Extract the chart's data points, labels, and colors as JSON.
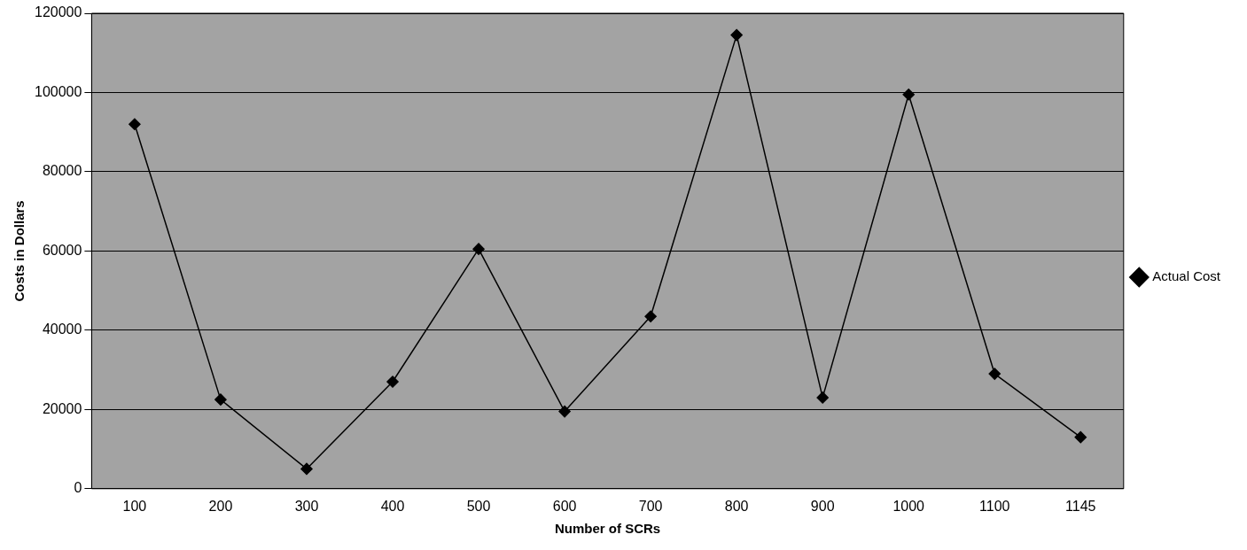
{
  "chart_data": {
    "type": "line",
    "xlabel": "Number of SCRs",
    "ylabel": "Costs in Dollars",
    "categories": [
      "100",
      "200",
      "300",
      "400",
      "500",
      "600",
      "700",
      "800",
      "900",
      "1000",
      "1100",
      "1145"
    ],
    "series": [
      {
        "name": "Actual Cost",
        "color": "#000000",
        "values": [
          92000,
          22500,
          5000,
          27000,
          60500,
          19500,
          43500,
          114500,
          23000,
          99500,
          29000,
          13000
        ]
      }
    ],
    "ylim": [
      0,
      120000
    ],
    "yticks": [
      0,
      20000,
      40000,
      60000,
      80000,
      100000,
      120000
    ],
    "grid": "y",
    "legend": "right",
    "marker": "diamond",
    "line_style": "solid"
  }
}
